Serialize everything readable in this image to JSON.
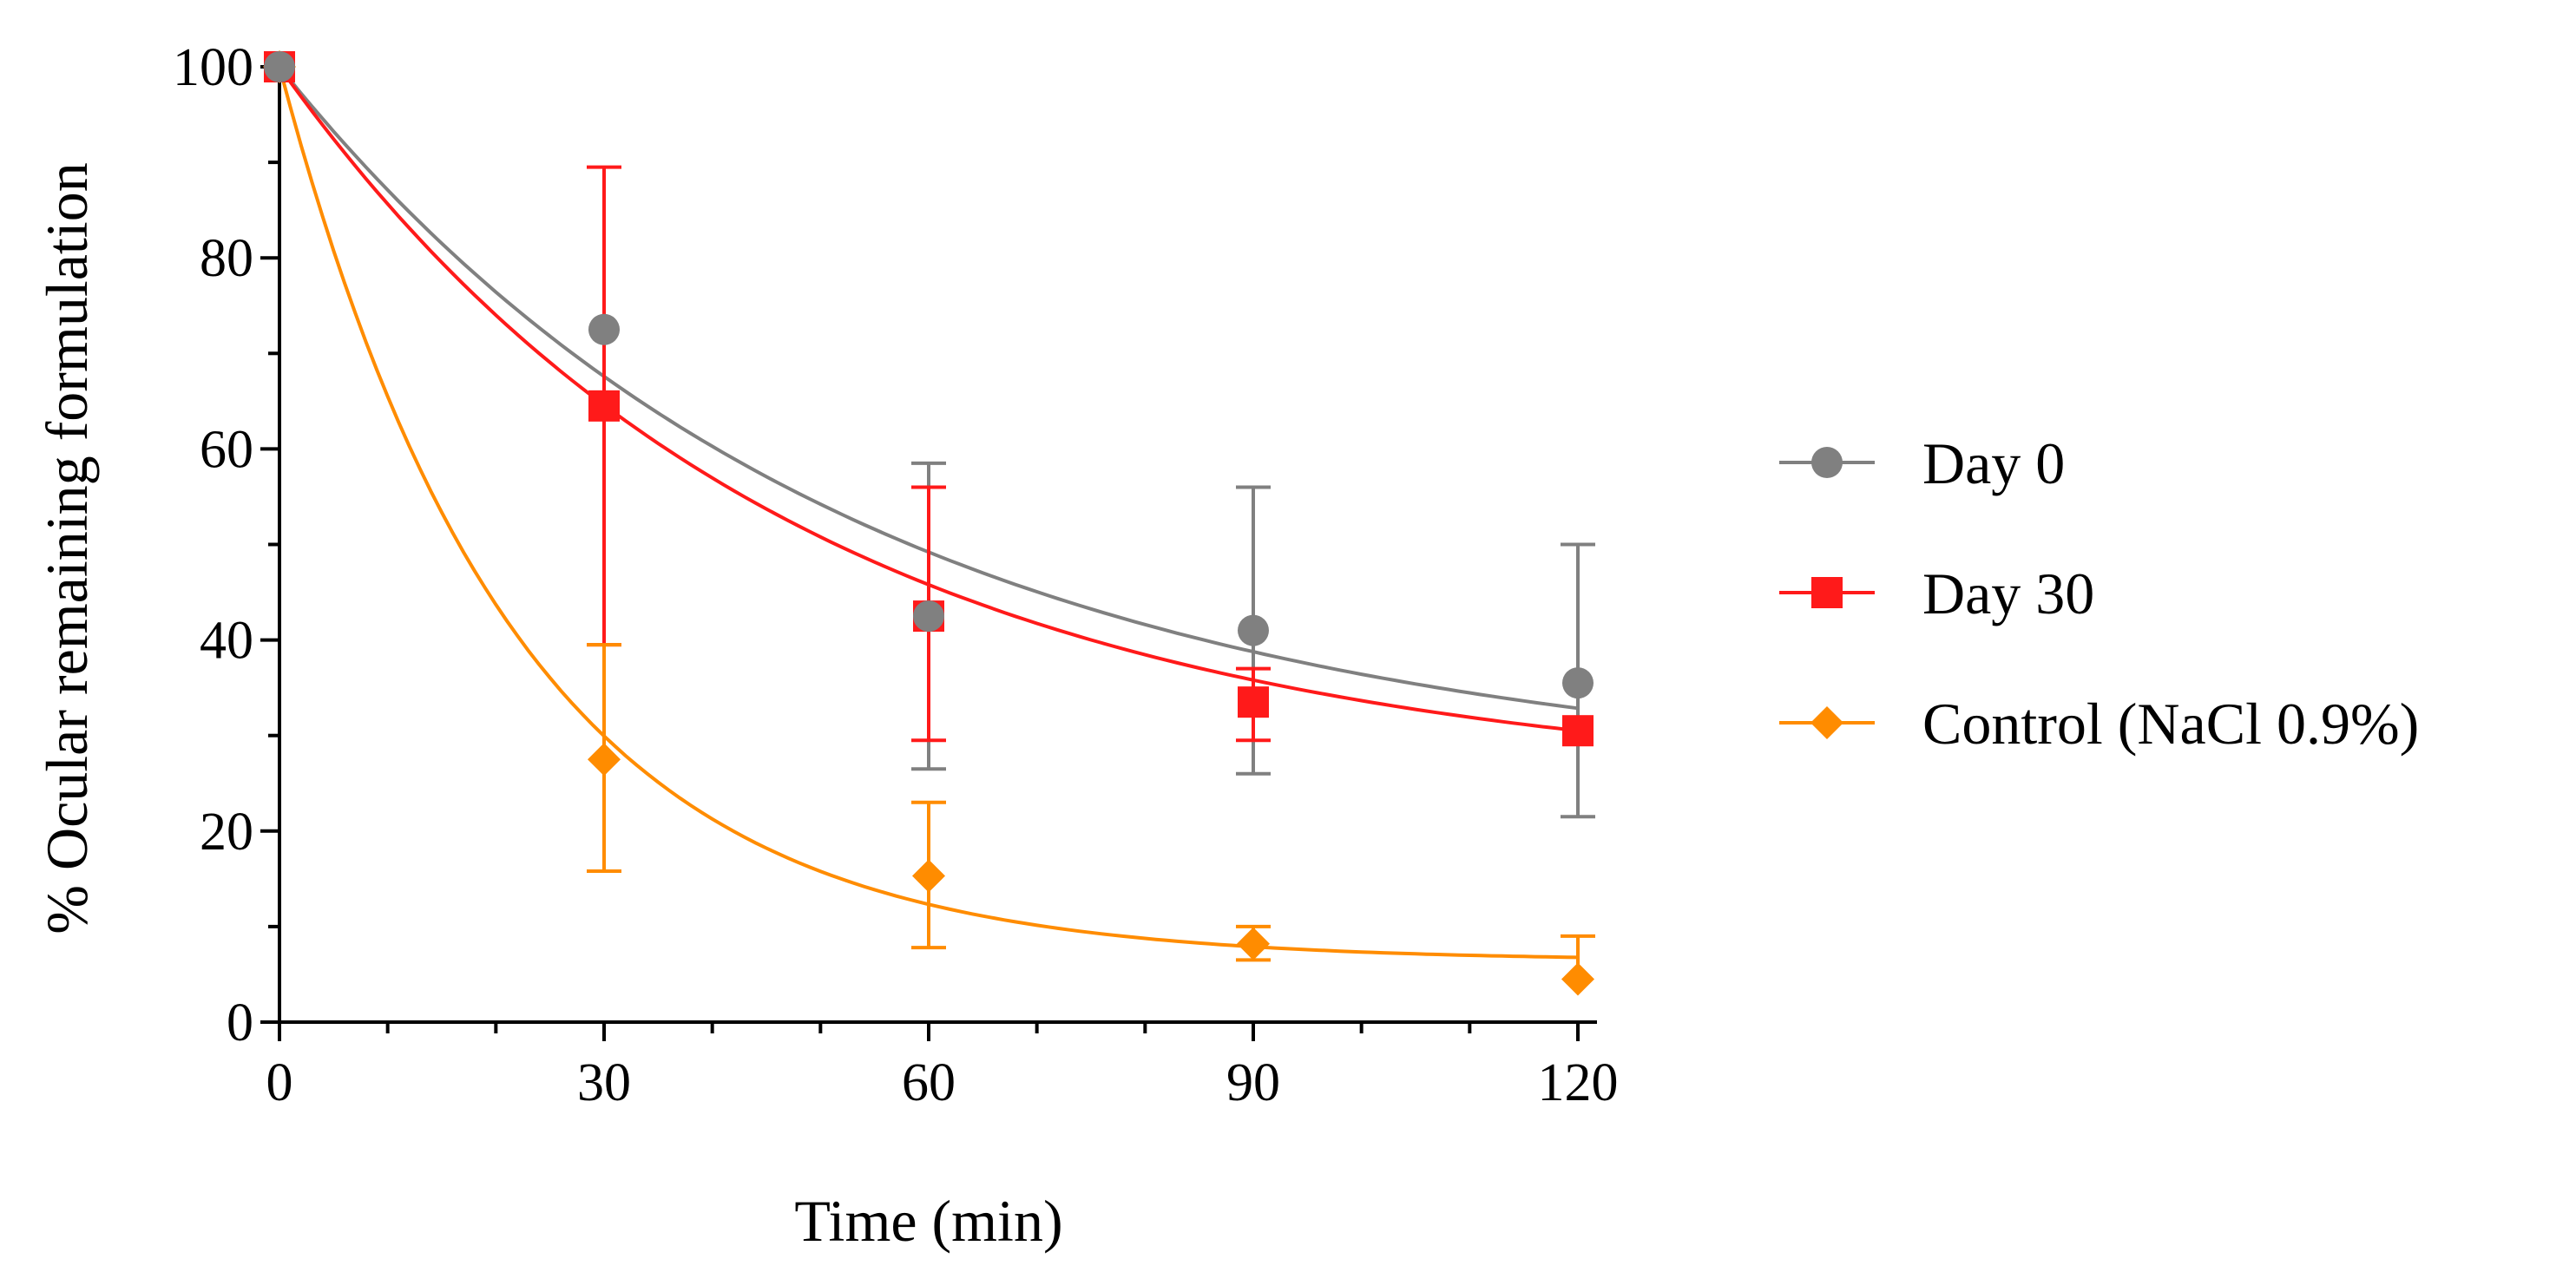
{
  "chart_data": {
    "type": "scatter",
    "title": "",
    "xlabel": "Time (min)",
    "ylabel": "% Ocular remaining formulation",
    "xlim": [
      0,
      120
    ],
    "ylim": [
      0,
      100
    ],
    "xticks": [
      0,
      30,
      60,
      90,
      120
    ],
    "yticks": [
      0,
      20,
      40,
      60,
      80,
      100
    ],
    "x_tick_labels": [
      "0",
      "30",
      "60",
      "90",
      "120"
    ],
    "y_tick_labels": [
      "0",
      "20",
      "40",
      "60",
      "80",
      "100"
    ],
    "legend_position": "right",
    "grid": false,
    "series": [
      {
        "name": "Day 0",
        "color": "#808080",
        "marker": "circle",
        "x": [
          0,
          30,
          60,
          90,
          120
        ],
        "y": [
          100,
          72.5,
          42.5,
          41,
          35.5
        ],
        "err_upper": [
          0,
          0,
          58.5,
          56,
          50
        ],
        "err_lower": [
          0,
          0,
          26.5,
          26,
          21.5
        ],
        "fit": {
          "model": "one-phase decay",
          "plateau": 25.1,
          "k": 0.0189
        }
      },
      {
        "name": "Day 30",
        "color": "#ff1a1a",
        "marker": "square",
        "x": [
          0,
          30,
          60,
          90,
          120
        ],
        "y": [
          100,
          64.5,
          42.5,
          33.5,
          30.5
        ],
        "err_upper": [
          0,
          89.5,
          56,
          37,
          0
        ],
        "err_lower": [
          0,
          39.5,
          29.5,
          29.5,
          0
        ],
        "fit": {
          "model": "one-phase decay",
          "plateau": 24.5,
          "k": 0.0211
        }
      },
      {
        "name": "Control (NaCl 0.9%)",
        "color": "#ff8c00",
        "marker": "diamond",
        "x": [
          0,
          30,
          60,
          90,
          120
        ],
        "y": [
          100,
          27.5,
          15.3,
          8.2,
          4.5
        ],
        "err_upper": [
          0,
          39.5,
          23,
          10,
          9
        ],
        "err_lower": [
          0,
          15.8,
          7.8,
          6.5,
          0
        ],
        "fit": {
          "model": "one-phase decay",
          "plateau": 6.4,
          "k": 0.046
        }
      }
    ]
  }
}
